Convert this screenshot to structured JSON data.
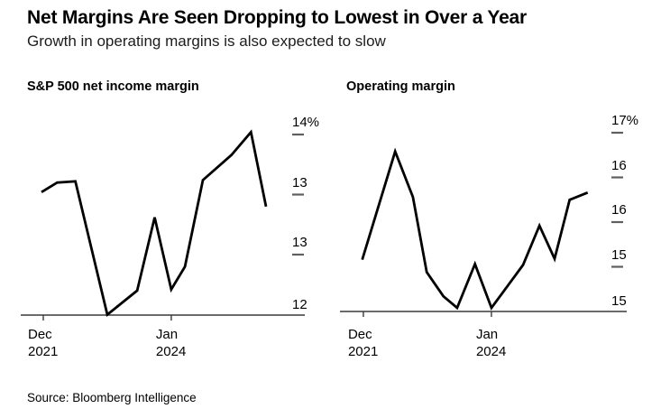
{
  "page": {
    "title": "Net Margins Are Seen Dropping to Lowest in Over a Year",
    "subtitle": "Growth in operating margins is also expected to slow",
    "source": "Source: Bloomberg Intelligence"
  },
  "colors": {
    "background": "#ffffff",
    "text": "#000000",
    "series_line": "#000000",
    "axis_line": "#3a3a3a",
    "tick_dash": "#5f5f5f"
  },
  "chart_data": [
    {
      "type": "line",
      "title": "S&P 500 net income margin",
      "unit": "%",
      "ylim": [
        12.5,
        14
      ],
      "grid": false,
      "y_ticks": [
        {
          "label": "14%",
          "value": 14
        },
        {
          "label": "13",
          "value": 13.5
        },
        {
          "label": "13",
          "value": 13
        },
        {
          "label": "12",
          "value": 12.5
        }
      ],
      "x_ticks": [
        {
          "month": "Dec",
          "year": "2021",
          "t": 0.008
        },
        {
          "month": "Jan",
          "year": "2024",
          "t": 0.578
        }
      ],
      "series": [
        {
          "name": "S&P 500 net income margin",
          "points": [
            {
              "t": 0.0,
              "v": 13.52
            },
            {
              "t": 0.07,
              "v": 13.6
            },
            {
              "t": 0.151,
              "v": 13.61
            },
            {
              "t": 0.293,
              "v": 12.5
            },
            {
              "t": 0.426,
              "v": 12.7
            },
            {
              "t": 0.504,
              "v": 13.31
            },
            {
              "t": 0.578,
              "v": 12.71
            },
            {
              "t": 0.639,
              "v": 12.9
            },
            {
              "t": 0.719,
              "v": 13.62
            },
            {
              "t": 0.846,
              "v": 13.83
            },
            {
              "t": 0.933,
              "v": 14.02
            },
            {
              "t": 1.0,
              "v": 13.4
            }
          ]
        }
      ]
    },
    {
      "type": "line",
      "title": "Operating margin",
      "unit": "%",
      "ylim": [
        15,
        17
      ],
      "grid": false,
      "y_ticks": [
        {
          "label": "17%",
          "value": 17
        },
        {
          "label": "16",
          "value": 16.5
        },
        {
          "label": "16",
          "value": 16
        },
        {
          "label": "15",
          "value": 15.5
        },
        {
          "label": "15",
          "value": 15
        }
      ],
      "x_ticks": [
        {
          "month": "Dec",
          "year": "2021",
          "t": 0.005
        },
        {
          "month": "Jan",
          "year": "2024",
          "t": 0.573
        }
      ],
      "series": [
        {
          "name": "Operating margin",
          "points": [
            {
              "t": 0.0,
              "v": 15.58
            },
            {
              "t": 0.146,
              "v": 16.79
            },
            {
              "t": 0.225,
              "v": 16.28
            },
            {
              "t": 0.286,
              "v": 15.44
            },
            {
              "t": 0.36,
              "v": 15.17
            },
            {
              "t": 0.421,
              "v": 15.04
            },
            {
              "t": 0.5,
              "v": 15.53
            },
            {
              "t": 0.573,
              "v": 15.04
            },
            {
              "t": 0.646,
              "v": 15.29
            },
            {
              "t": 0.713,
              "v": 15.52
            },
            {
              "t": 0.786,
              "v": 15.96
            },
            {
              "t": 0.853,
              "v": 15.59
            },
            {
              "t": 0.92,
              "v": 16.25
            },
            {
              "t": 1.0,
              "v": 16.33
            }
          ]
        }
      ]
    }
  ]
}
